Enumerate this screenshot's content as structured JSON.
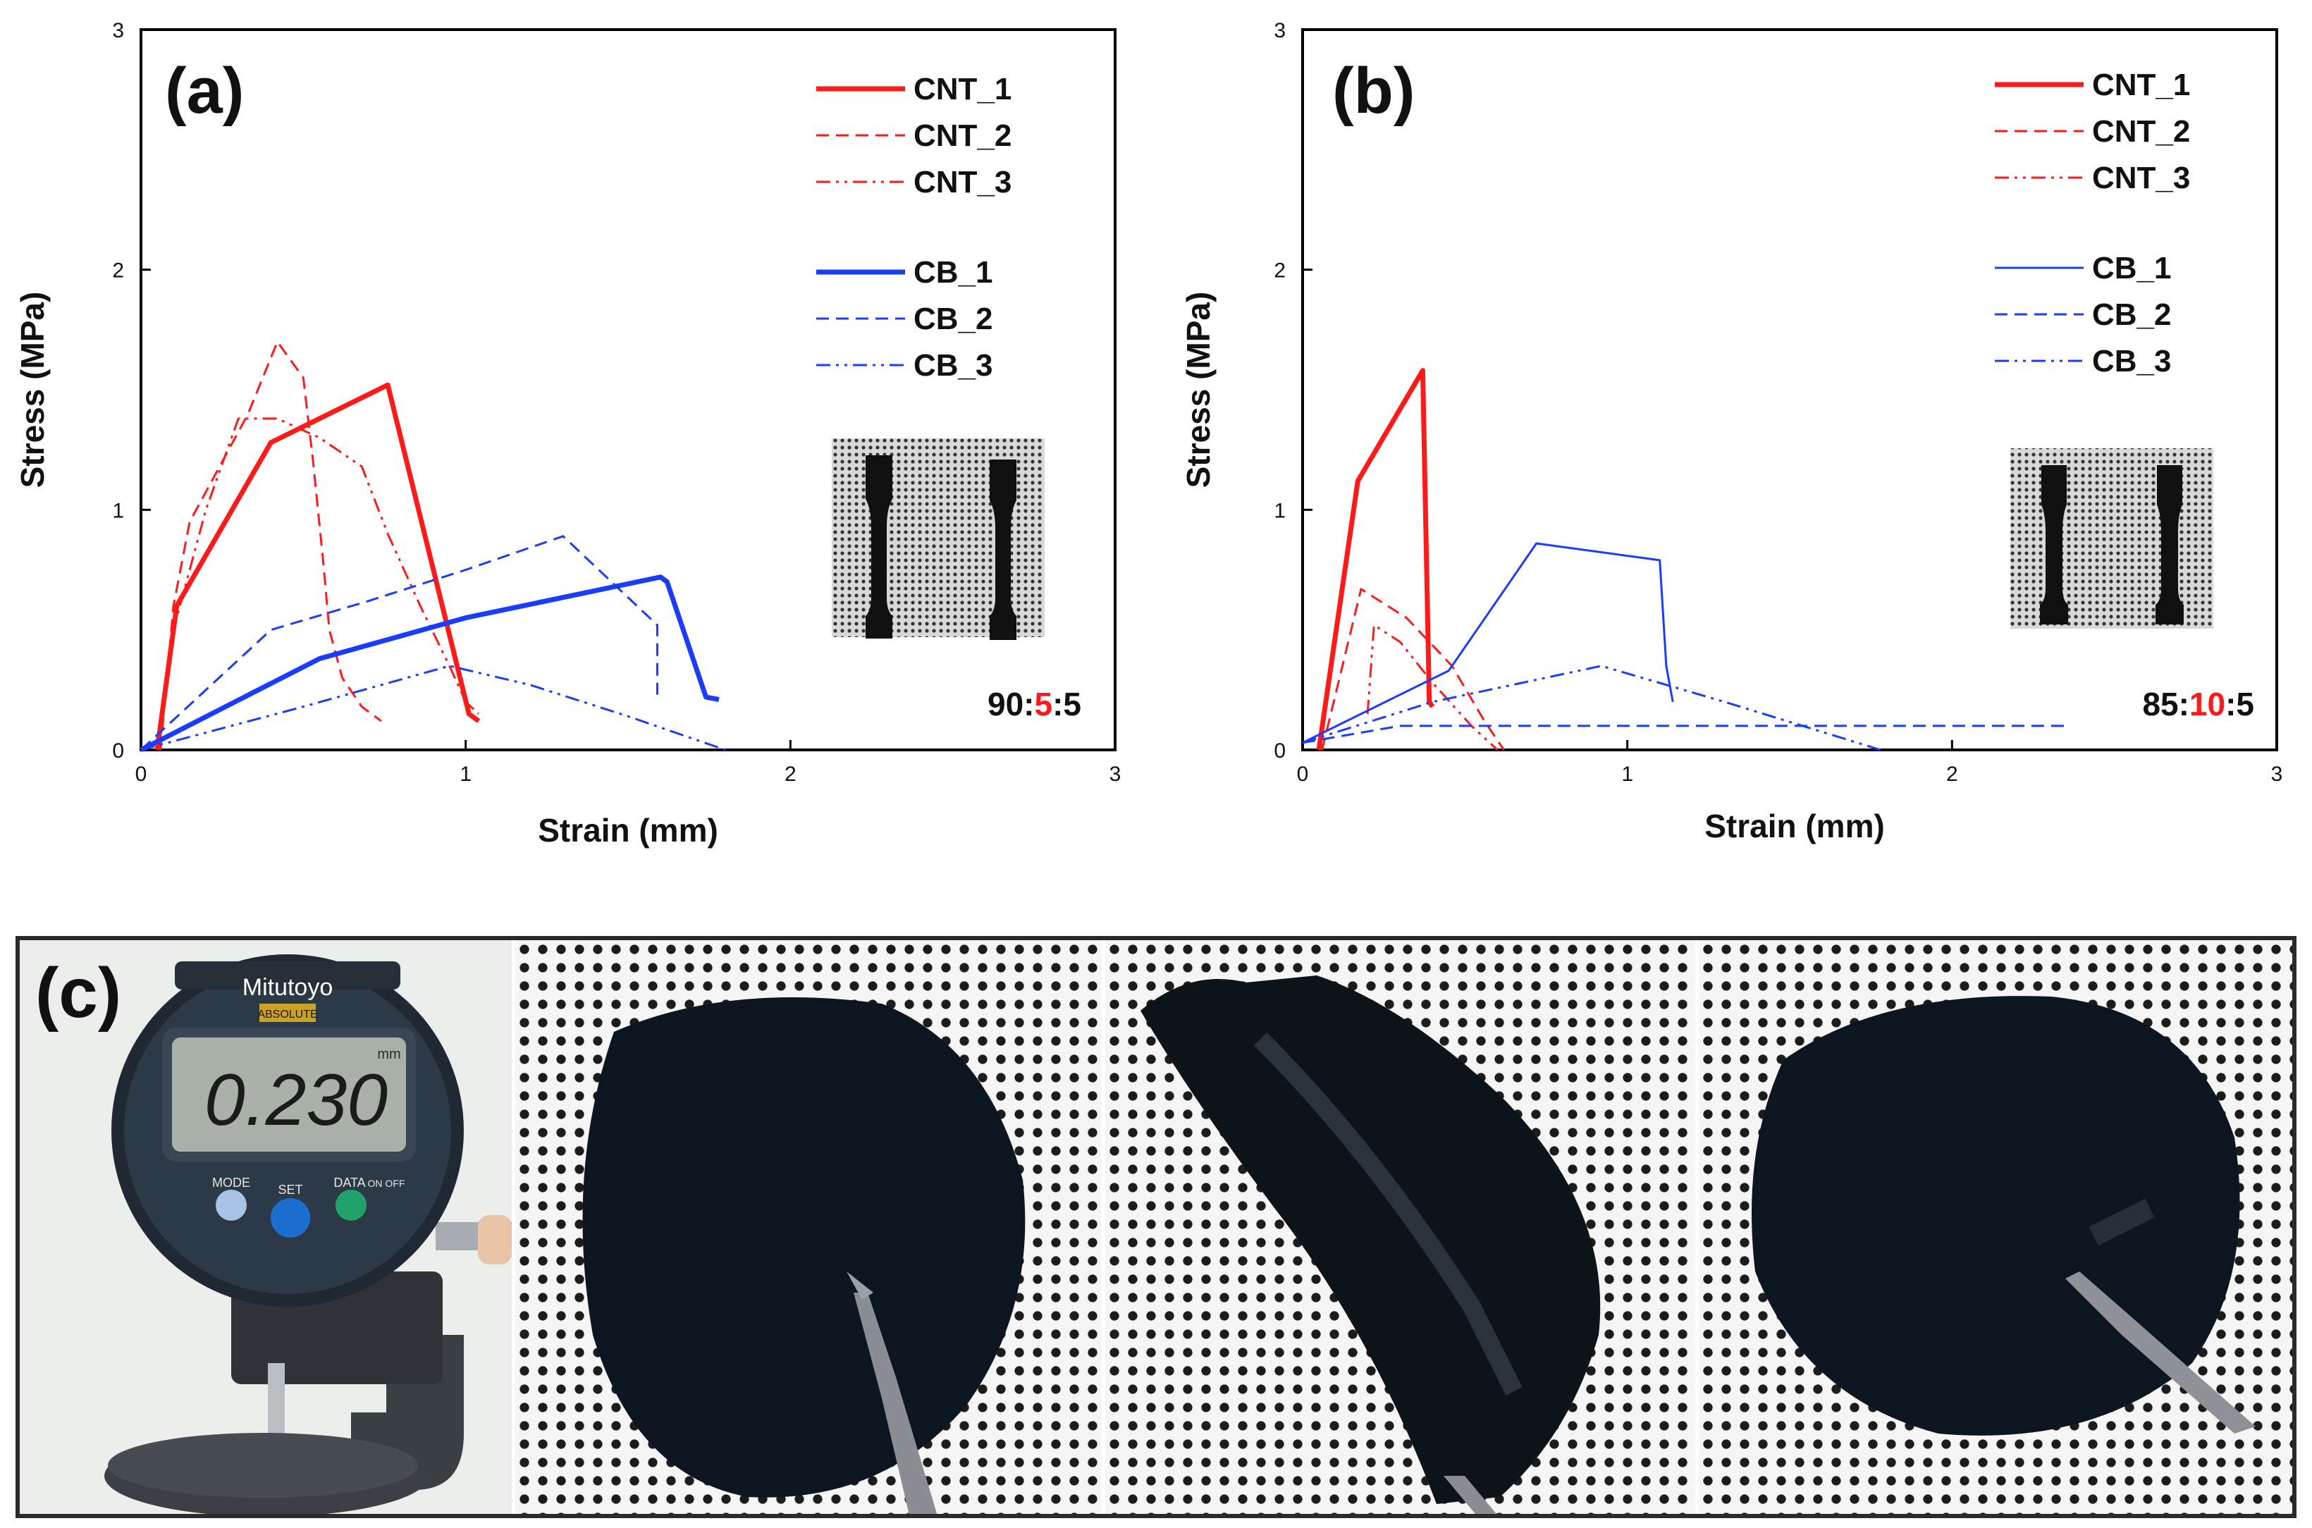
{
  "colors": {
    "cnt": "#ff1a1a",
    "cb": "#1a3cff",
    "ratio_highlight": "#ff1a1a"
  },
  "chart_data": [
    {
      "panel": "(a)",
      "type": "line",
      "xlabel": "Strain (mm)",
      "ylabel": "Stress (MPa)",
      "xlim": [
        0,
        3
      ],
      "ylim": [
        0,
        3
      ],
      "xticks": [
        "0",
        "1",
        "2",
        "3"
      ],
      "yticks": [
        "0",
        "1",
        "2",
        "3"
      ],
      "grid": false,
      "legend_position": "top-right",
      "ratio_label": {
        "before": "90:",
        "highlight": "5",
        "after": ":5"
      },
      "series": [
        {
          "name": "CNT_1",
          "color": "red",
          "style": "solid",
          "width": "thick",
          "x": [
            0.05,
            0.11,
            0.4,
            0.76,
            1.01,
            1.04
          ],
          "y": [
            0.0,
            0.6,
            1.28,
            1.52,
            0.15,
            0.12
          ]
        },
        {
          "name": "CNT_2",
          "color": "red",
          "style": "dashed",
          "width": "thin",
          "x": [
            0.06,
            0.1,
            0.15,
            0.23,
            0.33,
            0.42,
            0.5,
            0.53,
            0.56,
            0.58,
            0.62,
            0.68,
            0.74
          ],
          "y": [
            0.0,
            0.6,
            0.95,
            1.15,
            1.4,
            1.7,
            1.55,
            1.2,
            0.8,
            0.5,
            0.3,
            0.18,
            0.12
          ]
        },
        {
          "name": "CNT_3",
          "color": "red",
          "style": "dashdotdot",
          "width": "thin",
          "x": [
            0.05,
            0.1,
            0.2,
            0.3,
            0.42,
            0.55,
            0.68,
            0.76,
            0.86,
            0.95,
            1.0,
            1.04
          ],
          "y": [
            0.0,
            0.5,
            1.0,
            1.38,
            1.38,
            1.3,
            1.18,
            0.9,
            0.6,
            0.35,
            0.2,
            0.15
          ]
        },
        {
          "name": "CB_1",
          "color": "blue",
          "style": "solid",
          "width": "thick",
          "x": [
            0.0,
            0.55,
            1.0,
            1.6,
            1.62,
            1.74,
            1.78
          ],
          "y": [
            0.0,
            0.38,
            0.55,
            0.72,
            0.7,
            0.22,
            0.21
          ]
        },
        {
          "name": "CB_2",
          "color": "blue",
          "style": "dashed",
          "width": "thin",
          "x": [
            0.0,
            0.4,
            0.7,
            1.0,
            1.3,
            1.59,
            1.59
          ],
          "y": [
            0.0,
            0.5,
            0.62,
            0.75,
            0.89,
            0.52,
            0.23
          ]
        },
        {
          "name": "CB_3",
          "color": "blue",
          "style": "dashdotdot",
          "width": "thin",
          "x": [
            0.0,
            0.5,
            0.95,
            1.2,
            1.5,
            1.8
          ],
          "y": [
            0.0,
            0.18,
            0.35,
            0.27,
            0.14,
            0.0
          ]
        }
      ]
    },
    {
      "panel": "(b)",
      "type": "line",
      "xlabel": "Strain (mm)",
      "ylabel": "Stress (MPa)",
      "xlim": [
        0,
        3
      ],
      "ylim": [
        0,
        3
      ],
      "xticks": [
        "0",
        "1",
        "2",
        "3"
      ],
      "yticks": [
        "0",
        "1",
        "2",
        "3"
      ],
      "grid": false,
      "legend_position": "top-right",
      "ratio_label": {
        "before": "85:",
        "highlight": "10",
        "after": ":5"
      },
      "series": [
        {
          "name": "CNT_1",
          "color": "red",
          "style": "solid",
          "width": "thick",
          "x": [
            0.05,
            0.17,
            0.37,
            0.39,
            0.4
          ],
          "y": [
            0.0,
            1.12,
            1.58,
            0.2,
            0.18
          ]
        },
        {
          "name": "CNT_2",
          "color": "red",
          "style": "dashed",
          "width": "thin",
          "x": [
            0.06,
            0.18,
            0.32,
            0.46,
            0.56,
            0.62
          ],
          "y": [
            0.0,
            0.67,
            0.55,
            0.35,
            0.12,
            0.0
          ]
        },
        {
          "name": "CNT_3",
          "color": "red",
          "style": "dashdotdot",
          "width": "thin",
          "x": [
            0.2,
            0.22,
            0.3,
            0.4,
            0.52,
            0.6
          ],
          "y": [
            0.15,
            0.52,
            0.45,
            0.28,
            0.1,
            0.0
          ]
        },
        {
          "name": "CB_1",
          "color": "blue",
          "style": "solid",
          "width": "thin",
          "x": [
            0.0,
            0.45,
            0.72,
            1.1,
            1.12,
            1.14
          ],
          "y": [
            0.03,
            0.33,
            0.86,
            0.79,
            0.35,
            0.2
          ]
        },
        {
          "name": "CB_2",
          "color": "blue",
          "style": "dashed",
          "width": "thin",
          "x": [
            0.0,
            0.3,
            1.0,
            1.6,
            2.35
          ],
          "y": [
            0.03,
            0.1,
            0.1,
            0.1,
            0.1
          ]
        },
        {
          "name": "CB_3",
          "color": "blue",
          "style": "dashdotdot",
          "width": "thin",
          "x": [
            0.0,
            0.4,
            0.92,
            1.3,
            1.78
          ],
          "y": [
            0.03,
            0.2,
            0.35,
            0.2,
            0.0
          ]
        }
      ]
    }
  ],
  "photo_panel": {
    "label": "(c)",
    "gauge_brand": "Mitutoyo",
    "gauge_sub": "ABSOLUTE",
    "gauge_reading": "0.230",
    "gauge_unit": "mm",
    "gauge_buttons": [
      "MODE",
      "SET",
      "DATA"
    ],
    "gauge_onoff": "ON OFF"
  }
}
